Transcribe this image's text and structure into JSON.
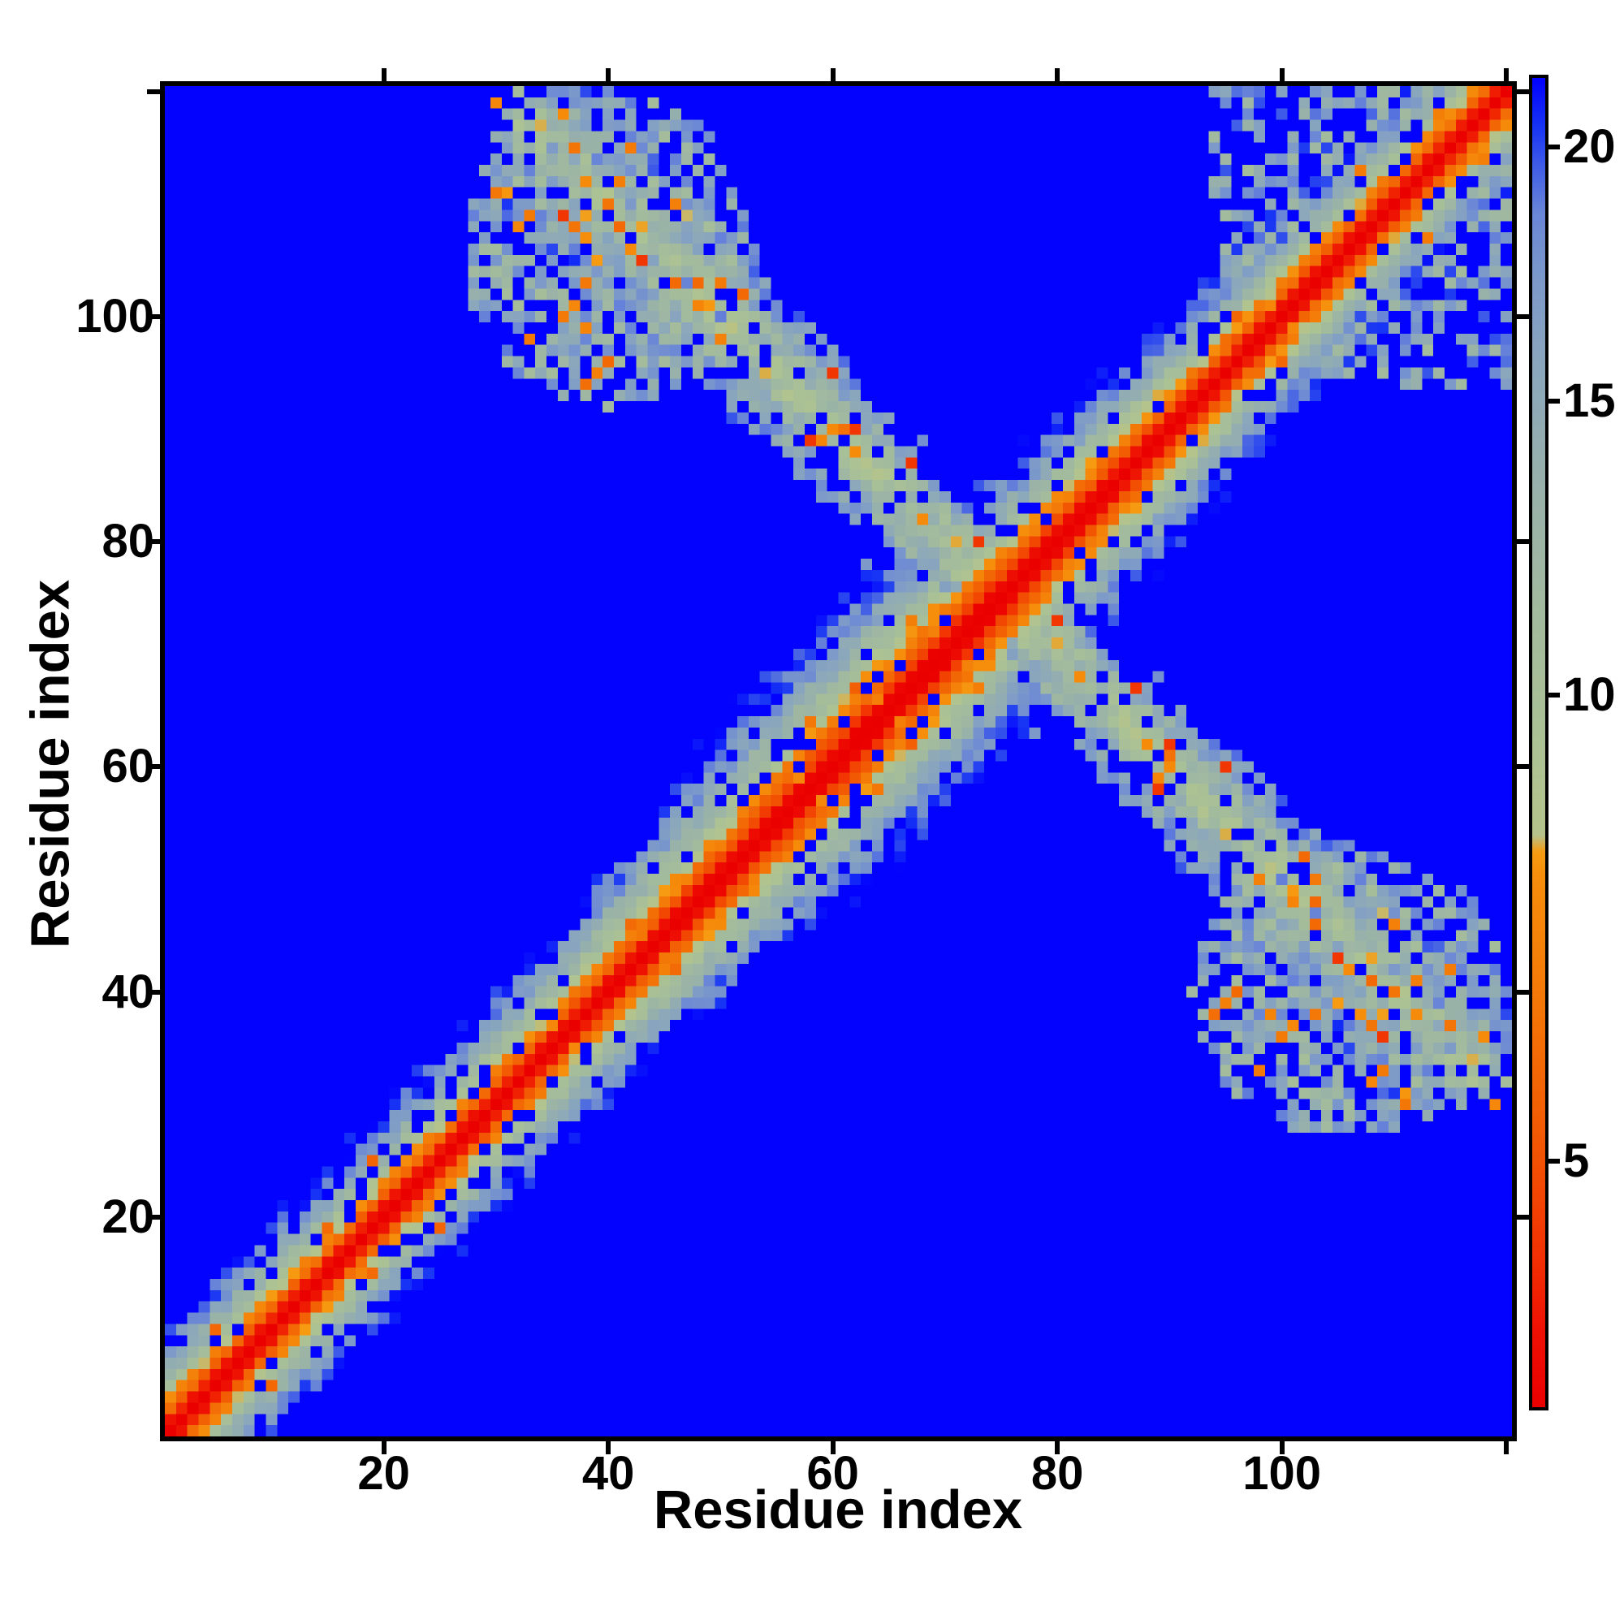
{
  "figure": {
    "background_color": "#ffffff",
    "frame_color": "#000000"
  },
  "chart_data": {
    "type": "heatmap",
    "title": "",
    "xlabel": "Residue index",
    "ylabel": "Residue index",
    "n": 120,
    "x_range": [
      1,
      120
    ],
    "y_range": [
      1,
      120
    ],
    "x_ticks": [
      20,
      40,
      60,
      80,
      100
    ],
    "y_ticks": [
      20,
      40,
      60,
      80,
      100
    ],
    "edge_tick_value": 120,
    "grid": false,
    "background_value": 21.5,
    "colorbar": {
      "position": "right",
      "ticks": [
        5,
        10,
        15,
        20
      ],
      "value_pos_knots": [
        [
          2.6,
          0.0
        ],
        [
          5,
          0.185
        ],
        [
          10,
          0.536
        ],
        [
          15,
          0.757
        ],
        [
          20,
          0.948
        ],
        [
          21.5,
          1.0
        ]
      ]
    },
    "colormap_stops": [
      [
        0.0,
        "#eb0000"
      ],
      [
        0.055,
        "#ee1003"
      ],
      [
        0.115,
        "#f23202"
      ],
      [
        0.2,
        "#f25803"
      ],
      [
        0.3,
        "#f37607"
      ],
      [
        0.4,
        "#f68e0b"
      ],
      [
        0.418,
        "#f69d13"
      ],
      [
        0.43,
        "#b5c38b"
      ],
      [
        0.5,
        "#abc295"
      ],
      [
        0.6,
        "#a2ba9e"
      ],
      [
        0.7,
        "#97b0ab"
      ],
      [
        0.78,
        "#8ba7bc"
      ],
      [
        0.85,
        "#7c99ca"
      ],
      [
        0.9,
        "#6985d7"
      ],
      [
        0.935,
        "#3f5ce8"
      ],
      [
        0.965,
        "#1733f5"
      ],
      [
        1.0,
        "#0202fe"
      ]
    ],
    "synthesis": {
      "seed": 1337,
      "vmax": 21.5,
      "diag": {
        "base": 1.3,
        "step": 2.25,
        "dip": 0.75,
        "dip_center": 65,
        "dip_sigma": 16,
        "noise": 0.28,
        "hole_p": 0.16,
        "hole_min_sep": 3,
        "speckle_p": 0.05,
        "speckle_lo": 5.5,
        "speckle_span": 2.5
      },
      "arm": {
        "i_min": 30,
        "i_max": 74,
        "center_sum": 150,
        "hw_base": 3.0,
        "hw_slope": 0.13,
        "hw_rand": 2.6,
        "val_base": 10.5,
        "val_slope": 1.05,
        "val_rand": 5.5,
        "hole_base": 0.04,
        "hole_far": 0.005,
        "hole_off": 0.025,
        "speckle_p": 0.14,
        "speckle_lo": 5.5,
        "speckle_span": 3.0,
        "red_p": 0.02,
        "red_val": 4.2,
        "fringe_p": 0.1,
        "fringe_lo": 15,
        "fringe_span": 5
      },
      "end_blob": {
        "ci": 40,
        "cj": 106,
        "ri": 13,
        "rj": 14,
        "fill_p": 0.6,
        "v_lo": 10.5,
        "v_span": 8.5,
        "speckle_p": 0.08,
        "speckle_lo": 6,
        "speckle_span": 2.5
      },
      "corner": {
        "i_min": 94,
        "min_sep": 7,
        "fill_p": 0.5,
        "v_lo": 11,
        "v_span": 9.5
      }
    }
  }
}
